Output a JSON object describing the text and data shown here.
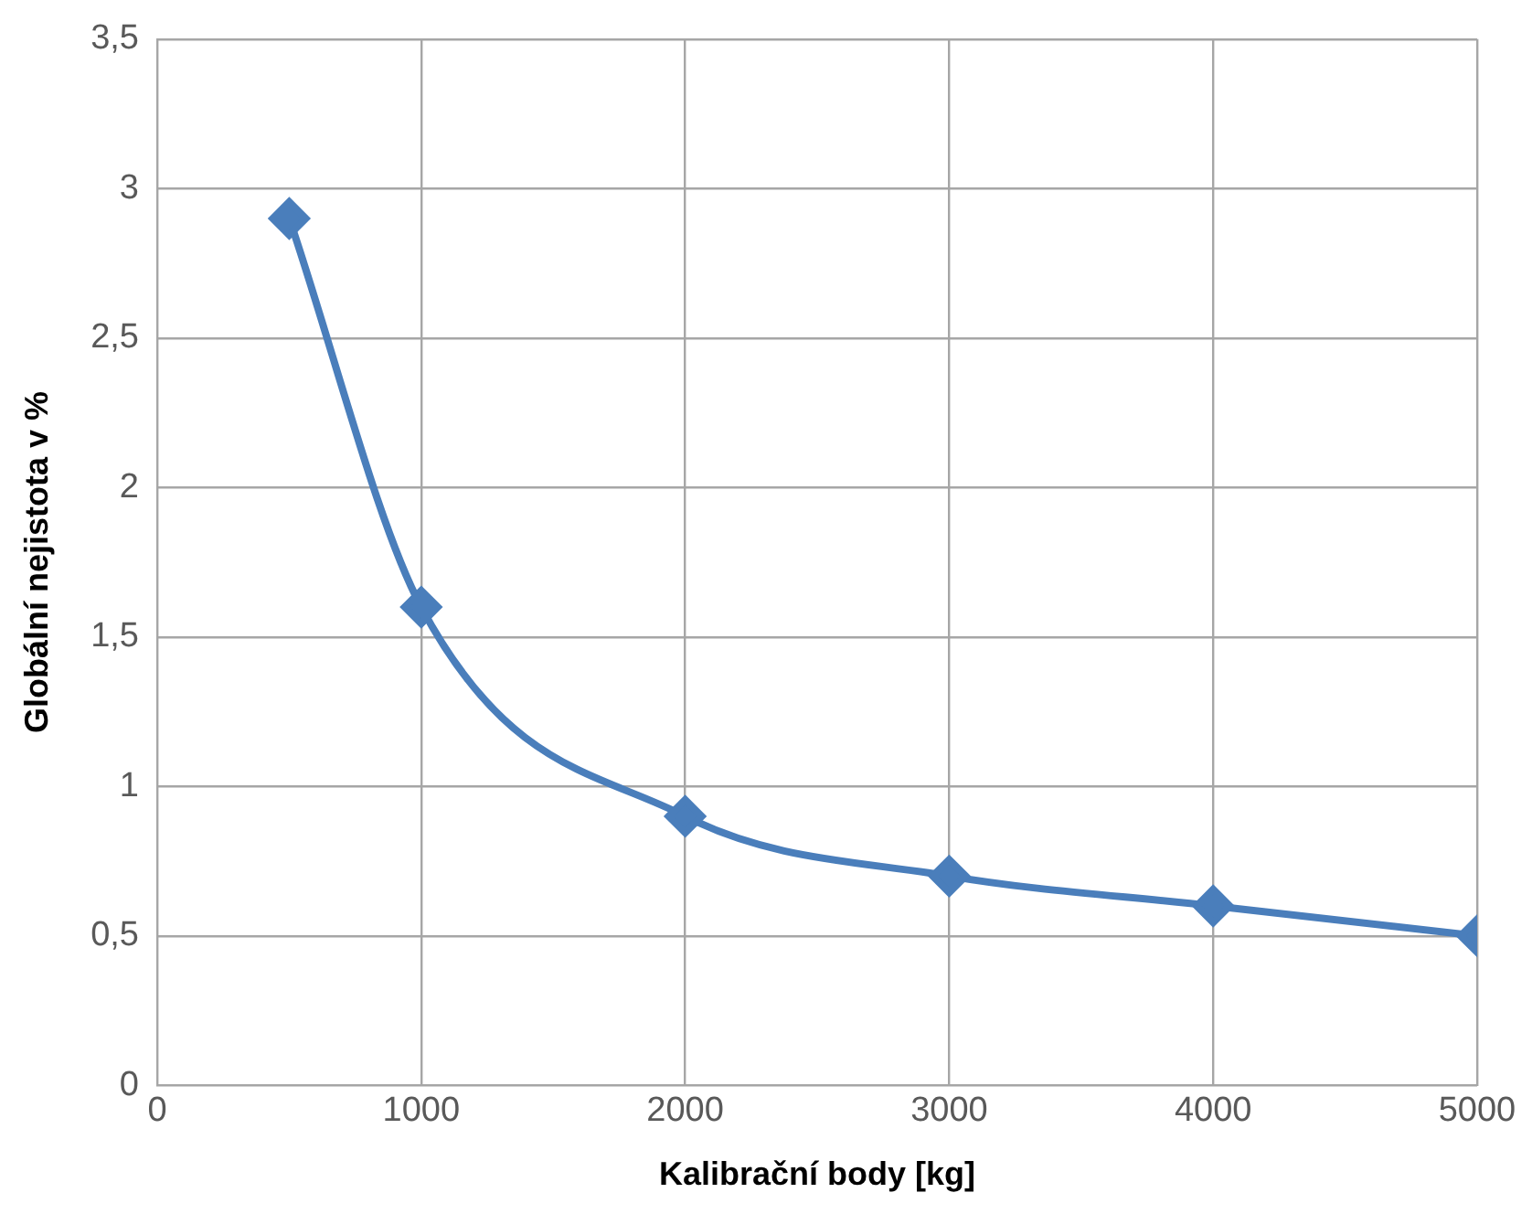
{
  "chart_data": {
    "type": "line",
    "xlabel": "Kalibrační body [kg]",
    "ylabel": "Globální nejistota v %",
    "x": [
      500,
      1000,
      2000,
      3000,
      4000,
      5000
    ],
    "series": [
      {
        "color": "#4a7ebb",
        "values": [
          2.9,
          1.6,
          0.9,
          0.7,
          0.6,
          0.5
        ]
      }
    ],
    "xlim": [
      0,
      5000
    ],
    "xticks": [
      0,
      1000,
      2000,
      3000,
      4000,
      5000
    ],
    "ylim": [
      0,
      3.5
    ],
    "yticks": [
      0,
      {
        "value": 0.5,
        "label": "0,5"
      },
      1,
      {
        "value": 1.5,
        "label": "1,5"
      },
      2,
      {
        "value": 2.5,
        "label": "2,5"
      },
      3,
      {
        "value": 3.5,
        "label": "3,5"
      }
    ],
    "grid": true,
    "legend": false,
    "marker": "diamond",
    "line_style": "solid"
  }
}
